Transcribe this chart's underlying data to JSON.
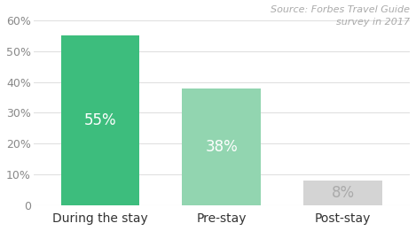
{
  "categories": [
    "During the stay",
    "Pre-stay",
    "Post-stay"
  ],
  "values": [
    55,
    38,
    8
  ],
  "bar_colors": [
    "#3DBD7D",
    "#92D5B0",
    "#D4D4D4"
  ],
  "label_colors": [
    "#ffffff",
    "#ffffff",
    "#aaaaaa"
  ],
  "bar_labels": [
    "55%",
    "38%",
    "8%"
  ],
  "ylim": [
    0,
    60
  ],
  "yticks": [
    0,
    10,
    20,
    30,
    40,
    50,
    60
  ],
  "source_text": "Source: Forbes Travel Guide\nsurvey in 2017",
  "background_color": "#ffffff",
  "label_fontsize": 12,
  "category_fontsize": 10,
  "source_fontsize": 8,
  "bar_width": 0.65
}
